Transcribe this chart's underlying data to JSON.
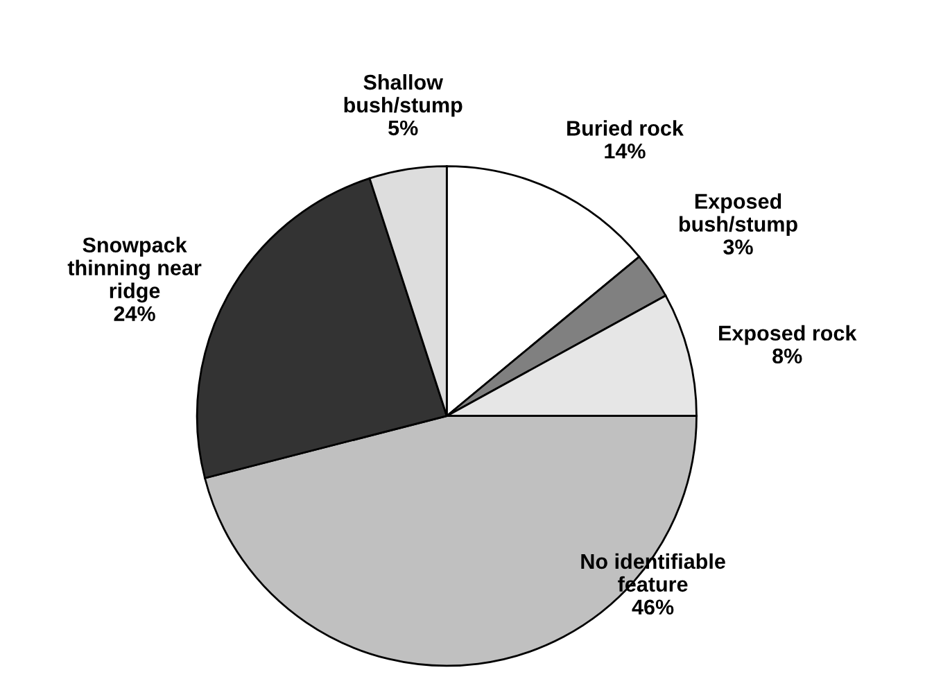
{
  "chart_data": {
    "type": "pie",
    "categories": [
      "Buried rock",
      "Exposed\nbush/stump",
      "Exposed rock",
      "No identifiable\nfeature",
      "Snowpack\nthinning near\nridge",
      "Shallow\nbush/stump"
    ],
    "values": [
      14,
      3,
      8,
      46,
      24,
      5
    ],
    "value_labels": [
      "14%",
      "3%",
      "8%",
      "46%",
      "24%",
      "5%"
    ],
    "colors": [
      "#ffffff",
      "#808080",
      "#e6e6e6",
      "#c0c0c0",
      "#333333",
      "#dddddd"
    ],
    "legend": false
  }
}
